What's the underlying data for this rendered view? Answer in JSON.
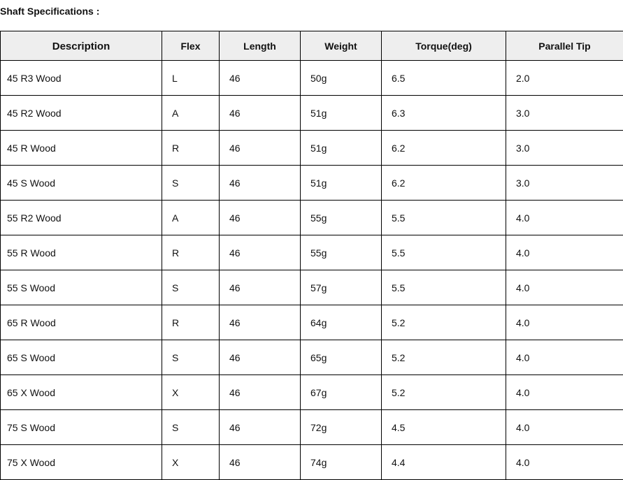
{
  "title": "Shaft Specifications :",
  "columns": [
    "Description",
    "Flex",
    "Length",
    "Weight",
    "Torque(deg)",
    "Parallel Tip"
  ],
  "rows": [
    [
      "45 R3 Wood",
      "L",
      "46",
      "50g",
      "6.5",
      "2.0"
    ],
    [
      "45 R2 Wood",
      "A",
      "46",
      "51g",
      "6.3",
      "3.0"
    ],
    [
      "45 R Wood",
      "R",
      "46",
      "51g",
      "6.2",
      "3.0"
    ],
    [
      "45 S Wood",
      "S",
      "46",
      "51g",
      "6.2",
      "3.0"
    ],
    [
      "55 R2 Wood",
      "A",
      "46",
      "55g",
      "5.5",
      "4.0"
    ],
    [
      "55 R Wood",
      "R",
      "46",
      "55g",
      "5.5",
      "4.0"
    ],
    [
      "55 S Wood",
      "S",
      "46",
      "57g",
      "5.5",
      "4.0"
    ],
    [
      "65 R Wood",
      "R",
      "46",
      "64g",
      "5.2",
      "4.0"
    ],
    [
      "65 S Wood",
      "S",
      "46",
      "65g",
      "5.2",
      "4.0"
    ],
    [
      "65 X Wood",
      "X",
      "46",
      "67g",
      "5.2",
      "4.0"
    ],
    [
      "75 S Wood",
      "S",
      "46",
      "72g",
      "4.5",
      "4.0"
    ],
    [
      "75 X Wood",
      "X",
      "46",
      "74g",
      "4.4",
      "4.0"
    ]
  ]
}
